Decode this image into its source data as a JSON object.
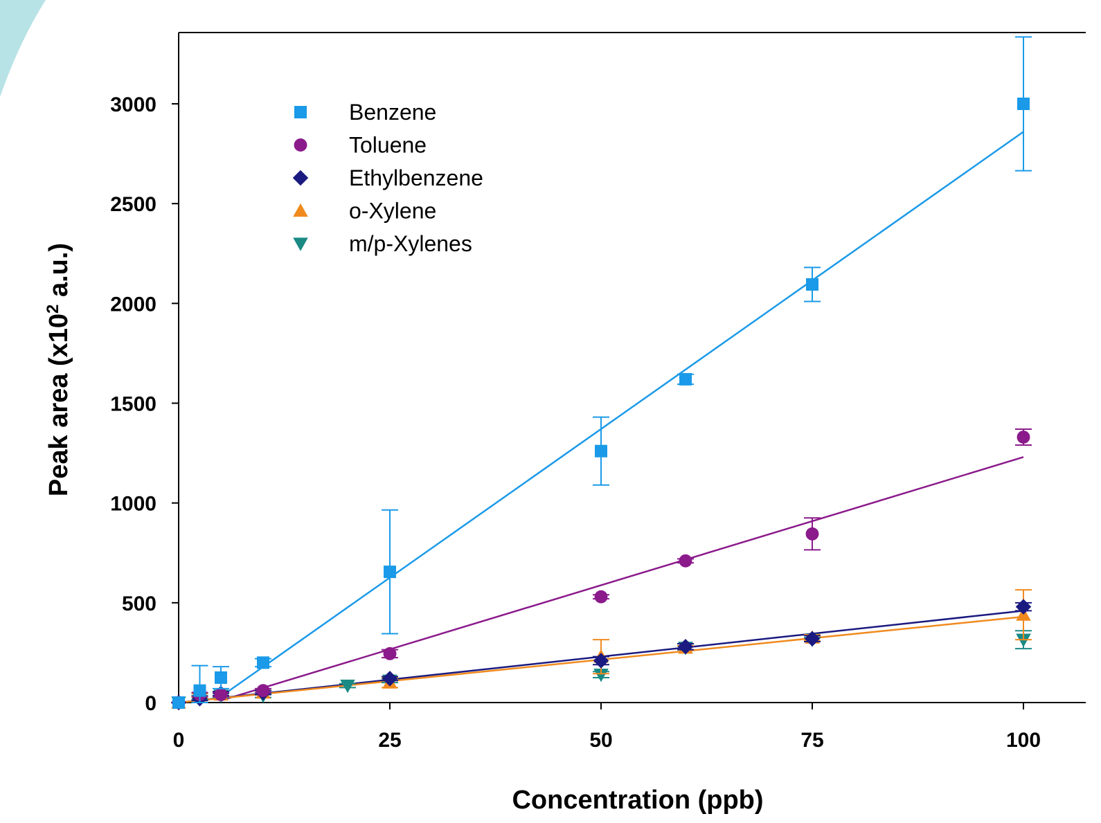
{
  "chart_data": {
    "type": "scatter",
    "xlabel": "Concentration (ppb)",
    "ylabel_main": "Peak area (x10",
    "ylabel_sup": "2",
    "ylabel_tail": " a.u.)",
    "xlim": [
      0,
      100
    ],
    "ylim": [
      0,
      3000
    ],
    "x_ticks": [
      0,
      25,
      50,
      75,
      100
    ],
    "y_ticks": [
      0,
      500,
      1000,
      1500,
      2000,
      2500,
      3000
    ],
    "grid": false,
    "legend_position": "top-left",
    "series": [
      {
        "name": "Benzene",
        "color": "#1a9ae8",
        "marker": "square",
        "points": [
          {
            "x": 0,
            "y": 0,
            "err": 0
          },
          {
            "x": 2.5,
            "y": 60,
            "err": 125
          },
          {
            "x": 5,
            "y": 125,
            "err": 55
          },
          {
            "x": 10,
            "y": 200,
            "err": 20
          },
          {
            "x": 25,
            "y": 655,
            "err": 310
          },
          {
            "x": 50,
            "y": 1260,
            "err": 170
          },
          {
            "x": 60,
            "y": 1620,
            "err": 25
          },
          {
            "x": 75,
            "y": 2095,
            "err": 85
          },
          {
            "x": 100,
            "y": 3000,
            "err": 335
          }
        ],
        "fit": {
          "x": [
            5.5,
            100
          ],
          "y": [
            45,
            2860
          ]
        }
      },
      {
        "name": "Toluene",
        "color": "#8b1a8b",
        "marker": "circle",
        "points": [
          {
            "x": 0,
            "y": 0,
            "err": 0
          },
          {
            "x": 2.5,
            "y": 40,
            "err": 10
          },
          {
            "x": 5,
            "y": 40,
            "err": 10
          },
          {
            "x": 10,
            "y": 60,
            "err": 10
          },
          {
            "x": 25,
            "y": 245,
            "err": 20
          },
          {
            "x": 50,
            "y": 530,
            "err": 10
          },
          {
            "x": 60,
            "y": 710,
            "err": 10
          },
          {
            "x": 75,
            "y": 845,
            "err": 80
          },
          {
            "x": 100,
            "y": 1330,
            "err": 40
          }
        ],
        "fit": {
          "x": [
            5,
            100
          ],
          "y": [
            10,
            1230
          ]
        }
      },
      {
        "name": "Ethylbenzene",
        "color": "#1a1a80",
        "marker": "diamond",
        "points": [
          {
            "x": 0,
            "y": 0,
            "err": 0
          },
          {
            "x": 2.5,
            "y": 20,
            "err": 10
          },
          {
            "x": 5,
            "y": 45,
            "err": 10
          },
          {
            "x": 10,
            "y": 50,
            "err": 10
          },
          {
            "x": 25,
            "y": 120,
            "err": 10
          },
          {
            "x": 50,
            "y": 210,
            "err": 20
          },
          {
            "x": 60,
            "y": 280,
            "err": 15
          },
          {
            "x": 75,
            "y": 320,
            "err": 15
          },
          {
            "x": 100,
            "y": 480,
            "err": 20
          }
        ],
        "fit": {
          "x": [
            0,
            100
          ],
          "y": [
            0,
            460
          ]
        }
      },
      {
        "name": "o-Xylene",
        "color": "#f08a1e",
        "marker": "triangle-up",
        "points": [
          {
            "x": 0,
            "y": 0,
            "err": 0
          },
          {
            "x": 2.5,
            "y": 35,
            "err": 10
          },
          {
            "x": 5,
            "y": 40,
            "err": 10
          },
          {
            "x": 10,
            "y": 50,
            "err": 10
          },
          {
            "x": 25,
            "y": 100,
            "err": 25
          },
          {
            "x": 50,
            "y": 230,
            "err": 85
          },
          {
            "x": 60,
            "y": 275,
            "err": 10
          },
          {
            "x": 75,
            "y": 325,
            "err": 15
          },
          {
            "x": 100,
            "y": 440,
            "err": 125
          }
        ],
        "fit": {
          "x": [
            0,
            100
          ],
          "y": [
            0,
            430
          ]
        }
      },
      {
        "name": "m/p-Xylenes",
        "color": "#1a8a85",
        "marker": "triangle-down",
        "points": [
          {
            "x": 0,
            "y": 0,
            "err": 0
          },
          {
            "x": 2.5,
            "y": 25,
            "err": 10
          },
          {
            "x": 5,
            "y": 35,
            "err": 10
          },
          {
            "x": 10,
            "y": 35,
            "err": 10
          },
          {
            "x": 20,
            "y": 85,
            "err": 10
          },
          {
            "x": 25,
            "y": 110,
            "err": 10
          },
          {
            "x": 50,
            "y": 140,
            "err": 15
          },
          {
            "x": 60,
            "y": 275,
            "err": 10
          },
          {
            "x": 75,
            "y": 315,
            "err": 10
          },
          {
            "x": 100,
            "y": 315,
            "err": 45
          }
        ],
        "fit": null
      }
    ]
  },
  "decor": {
    "corner_color": "#b8e3e6"
  }
}
